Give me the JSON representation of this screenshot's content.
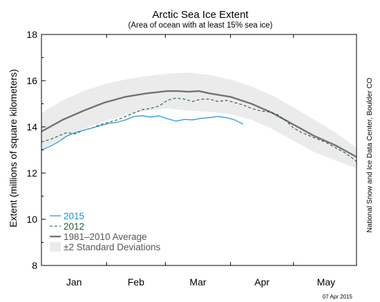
{
  "chart_data": {
    "type": "line",
    "title": "Arctic Sea Ice Extent",
    "subtitle": "(Area of ocean with at least 15% sea ice)",
    "ylabel": "Extent (millions of square kilometers)",
    "xlabel": "",
    "ylim": [
      8,
      18
    ],
    "yticks": [
      8,
      10,
      12,
      14,
      16,
      18
    ],
    "xlim": [
      0,
      150
    ],
    "x_month_labels": [
      "Jan",
      "Feb",
      "Mar",
      "Apr",
      "May"
    ],
    "x_month_label_days": [
      15.5,
      45,
      74.5,
      105,
      135.5
    ],
    "x_minor_tick_days": [
      31,
      59,
      90,
      120
    ],
    "grid": false,
    "legend_position": "bottom-left",
    "legend": [
      "2015",
      "2012",
      "1981–2010 Average",
      "±2 Standard Deviations"
    ],
    "credit": "National Snow and Ice Data Center, Boulder CO",
    "date_stamp": "07 Apr 2015",
    "colors": {
      "s2015": "#1a8fdc",
      "s2012": "#1e5b2c",
      "average": "#727272",
      "std_band": "#ebebeb"
    },
    "series": [
      {
        "name": "2015",
        "x": [
          0,
          4,
          8,
          12,
          16,
          20,
          24,
          28,
          32,
          36,
          40,
          44,
          48,
          52,
          56,
          60,
          64,
          68,
          72,
          76,
          80,
          84,
          88,
          92,
          96
        ],
        "y": [
          13.0,
          13.15,
          13.35,
          13.6,
          13.75,
          13.85,
          13.95,
          14.05,
          14.15,
          14.2,
          14.3,
          14.45,
          14.48,
          14.42,
          14.48,
          14.35,
          14.25,
          14.32,
          14.3,
          14.37,
          14.4,
          14.45,
          14.4,
          14.3,
          14.12
        ]
      },
      {
        "name": "2012",
        "x": [
          0,
          4,
          8,
          12,
          16,
          20,
          24,
          28,
          32,
          36,
          40,
          44,
          48,
          52,
          56,
          60,
          64,
          68,
          72,
          76,
          80,
          84,
          88,
          92,
          96,
          100,
          104,
          108,
          112,
          116,
          120,
          124,
          128,
          132,
          136,
          140,
          144,
          148,
          151
        ],
        "y": [
          13.35,
          13.45,
          13.6,
          13.75,
          13.7,
          13.85,
          13.95,
          14.1,
          14.2,
          14.3,
          14.45,
          14.6,
          14.75,
          14.8,
          14.9,
          15.15,
          15.25,
          15.2,
          15.1,
          15.2,
          15.2,
          15.1,
          15.15,
          15.05,
          14.95,
          14.8,
          14.7,
          14.65,
          14.55,
          14.3,
          13.95,
          13.75,
          13.6,
          13.45,
          13.3,
          13.1,
          12.9,
          12.65,
          12.5
        ]
      },
      {
        "name": "1981–2010 Average",
        "x": [
          0,
          10,
          20,
          30,
          40,
          50,
          60,
          65,
          70,
          75,
          80,
          90,
          100,
          110,
          120,
          130,
          140,
          151
        ],
        "y": [
          13.8,
          14.3,
          14.7,
          15.05,
          15.3,
          15.45,
          15.55,
          15.55,
          15.52,
          15.55,
          15.45,
          15.3,
          15.0,
          14.6,
          14.1,
          13.6,
          13.2,
          12.7
        ]
      }
    ],
    "std_band": {
      "name": "±2 Standard Deviations",
      "x": [
        0,
        10,
        20,
        30,
        40,
        50,
        60,
        70,
        80,
        90,
        100,
        110,
        120,
        130,
        140,
        151
      ],
      "upper": [
        14.6,
        15.15,
        15.55,
        15.85,
        16.05,
        16.2,
        16.3,
        16.35,
        16.25,
        16.05,
        15.75,
        15.35,
        14.85,
        14.3,
        13.75,
        13.1
      ],
      "lower": [
        13.0,
        13.5,
        13.9,
        14.25,
        14.5,
        14.7,
        14.8,
        14.7,
        14.65,
        14.55,
        14.3,
        13.9,
        13.4,
        12.9,
        12.55,
        12.2
      ]
    }
  }
}
